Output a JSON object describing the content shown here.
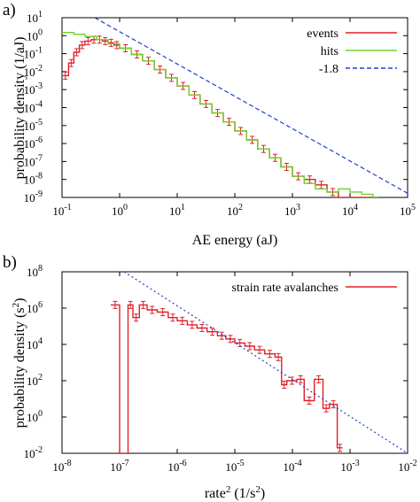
{
  "chart_data": [
    {
      "panel_label": "a)",
      "type": "line",
      "xlabel": "AE energy (aJ)",
      "ylabel": "probability density (1/aJ)",
      "xscale": "log",
      "yscale": "log",
      "xlim": [
        0.1,
        100000
      ],
      "ylim": [
        1e-09,
        10
      ],
      "x_ticks": [
        {
          "value": 0.1,
          "base": "10",
          "exp": "-1"
        },
        {
          "value": 1,
          "base": "10",
          "exp": "0"
        },
        {
          "value": 10,
          "base": "10",
          "exp": "1"
        },
        {
          "value": 100,
          "base": "10",
          "exp": "2"
        },
        {
          "value": 1000,
          "base": "10",
          "exp": "3"
        },
        {
          "value": 10000,
          "base": "10",
          "exp": "4"
        },
        {
          "value": 100000,
          "base": "10",
          "exp": "5"
        }
      ],
      "y_ticks": [
        {
          "value": 10,
          "base": "10",
          "exp": "1"
        },
        {
          "value": 1,
          "base": "10",
          "exp": "0"
        },
        {
          "value": 0.1,
          "base": "10",
          "exp": "-1"
        },
        {
          "value": 0.01,
          "base": "10",
          "exp": "-2"
        },
        {
          "value": 0.001,
          "base": "10",
          "exp": "-3"
        },
        {
          "value": 0.0001,
          "base": "10",
          "exp": "-4"
        },
        {
          "value": 1e-05,
          "base": "10",
          "exp": "-5"
        },
        {
          "value": 1e-06,
          "base": "10",
          "exp": "-6"
        },
        {
          "value": 1e-07,
          "base": "10",
          "exp": "-7"
        },
        {
          "value": 1e-08,
          "base": "10",
          "exp": "-8"
        },
        {
          "value": 1e-09,
          "base": "10",
          "exp": "-9"
        }
      ],
      "legend_position": "top-right",
      "series": [
        {
          "name": "events",
          "color": "#e0202a",
          "style": "steps-with-errorbars",
          "x": [
            0.1,
            0.13,
            0.16,
            0.2,
            0.25,
            0.32,
            0.4,
            0.5,
            0.63,
            0.8,
            1,
            1.6,
            2.5,
            4,
            6.3,
            10,
            16,
            25,
            40,
            63,
            100,
            160,
            250,
            400,
            630,
            1000,
            1600,
            2500,
            4000,
            6300,
            10000,
            16000,
            25000
          ],
          "y": [
            0.006,
            0.03,
            0.12,
            0.3,
            0.5,
            0.6,
            0.6,
            0.5,
            0.4,
            0.3,
            0.2,
            0.09,
            0.04,
            0.013,
            0.0045,
            0.0016,
            0.0005,
            0.00016,
            5e-05,
            1.6e-05,
            5e-06,
            1.6e-06,
            5e-07,
            1.6e-07,
            5e-08,
            1.5e-08,
            1e-08,
            5e-09,
            2e-09,
            1e-09,
            1e-09,
            1e-09,
            1e-09
          ]
        },
        {
          "name": "hits",
          "color": "#6fd12e",
          "style": "steps",
          "x": [
            0.1,
            0.16,
            0.25,
            0.4,
            0.63,
            1,
            1.6,
            2.5,
            4,
            6.3,
            10,
            16,
            25,
            40,
            63,
            100,
            160,
            250,
            400,
            630,
            1000,
            1600,
            2500,
            4000,
            6300,
            10000,
            16000,
            25000
          ],
          "y": [
            1.5,
            1.2,
            0.9,
            0.6,
            0.35,
            0.2,
            0.09,
            0.04,
            0.013,
            0.0045,
            0.0016,
            0.0005,
            0.00016,
            5e-05,
            1.6e-05,
            5e-06,
            1.6e-06,
            5e-07,
            1.6e-07,
            5e-08,
            1.5e-08,
            6e-09,
            3e-09,
            2e-09,
            3e-09,
            2e-09,
            1.5e-09,
            1e-09
          ]
        },
        {
          "name": "-1.8",
          "color": "#2040c8",
          "style": "dashed",
          "x": [
            0.37,
            100000
          ],
          "y": [
            10,
            1.7e-09
          ]
        }
      ]
    },
    {
      "panel_label": "b)",
      "type": "line",
      "xlabel_main": "rate",
      "xlabel_sup": "2",
      "xlabel_unit": " (1/s",
      "xlabel_unit_sup": "2",
      "xlabel_unit_close": ")",
      "ylabel_main": "probability density (s",
      "ylabel_sup": "2",
      "ylabel_close": ")",
      "xscale": "log",
      "yscale": "log",
      "xlim": [
        1e-08,
        0.01
      ],
      "ylim": [
        0.01,
        100000000
      ],
      "x_ticks": [
        {
          "value": 1e-08,
          "base": "10",
          "exp": "-8"
        },
        {
          "value": 1e-07,
          "base": "10",
          "exp": "-7"
        },
        {
          "value": 1e-06,
          "base": "10",
          "exp": "-6"
        },
        {
          "value": 1e-05,
          "base": "10",
          "exp": "-5"
        },
        {
          "value": 0.0001,
          "base": "10",
          "exp": "-4"
        },
        {
          "value": 0.001,
          "base": "10",
          "exp": "-3"
        },
        {
          "value": 0.01,
          "base": "10",
          "exp": "-2"
        }
      ],
      "y_ticks": [
        {
          "value": 100000000,
          "base": "10",
          "exp": "8"
        },
        {
          "value": 1000000,
          "base": "10",
          "exp": "6"
        },
        {
          "value": 10000,
          "base": "10",
          "exp": "4"
        },
        {
          "value": 100,
          "base": "10",
          "exp": "2"
        },
        {
          "value": 1,
          "base": "10",
          "exp": "0"
        },
        {
          "value": 0.01,
          "base": "10",
          "exp": "-2"
        }
      ],
      "legend_position": "top-right",
      "series": [
        {
          "name": "strain rate avalanches",
          "color": "#e0202a",
          "style": "steps-with-errorbars",
          "x": [
            7e-08,
            1e-07,
            1.4e-07,
            1.7e-07,
            2.2e-07,
            3e-07,
            4.5e-07,
            7e-07,
            1e-06,
            1.5e-06,
            2.2e-06,
            3.3e-06,
            5e-06,
            7e-06,
            1e-05,
            1.5e-05,
            2.2e-05,
            3.3e-05,
            5e-05,
            6.5e-05,
            8e-05,
            0.00012,
            0.00016,
            0.00024,
            0.00034,
            0.00044,
            0.0006
          ],
          "y": [
            1500000.0,
            0.01,
            1500000.0,
            300000.0,
            1500000.0,
            800000.0,
            600000.0,
            300000.0,
            200000.0,
            120000.0,
            80000.0,
            50000.0,
            30000.0,
            20000.0,
            12000.0,
            8000.0,
            5000.0,
            3000.0,
            2000.0,
            60,
            100,
            120,
            8,
            120,
            3,
            5,
            0.02
          ]
        },
        {
          "name": "",
          "color": "#2040c8",
          "style": "dotted",
          "x": [
            1.2e-07,
            0.01
          ],
          "y": [
            100000000.0,
            0.01
          ]
        }
      ]
    }
  ]
}
